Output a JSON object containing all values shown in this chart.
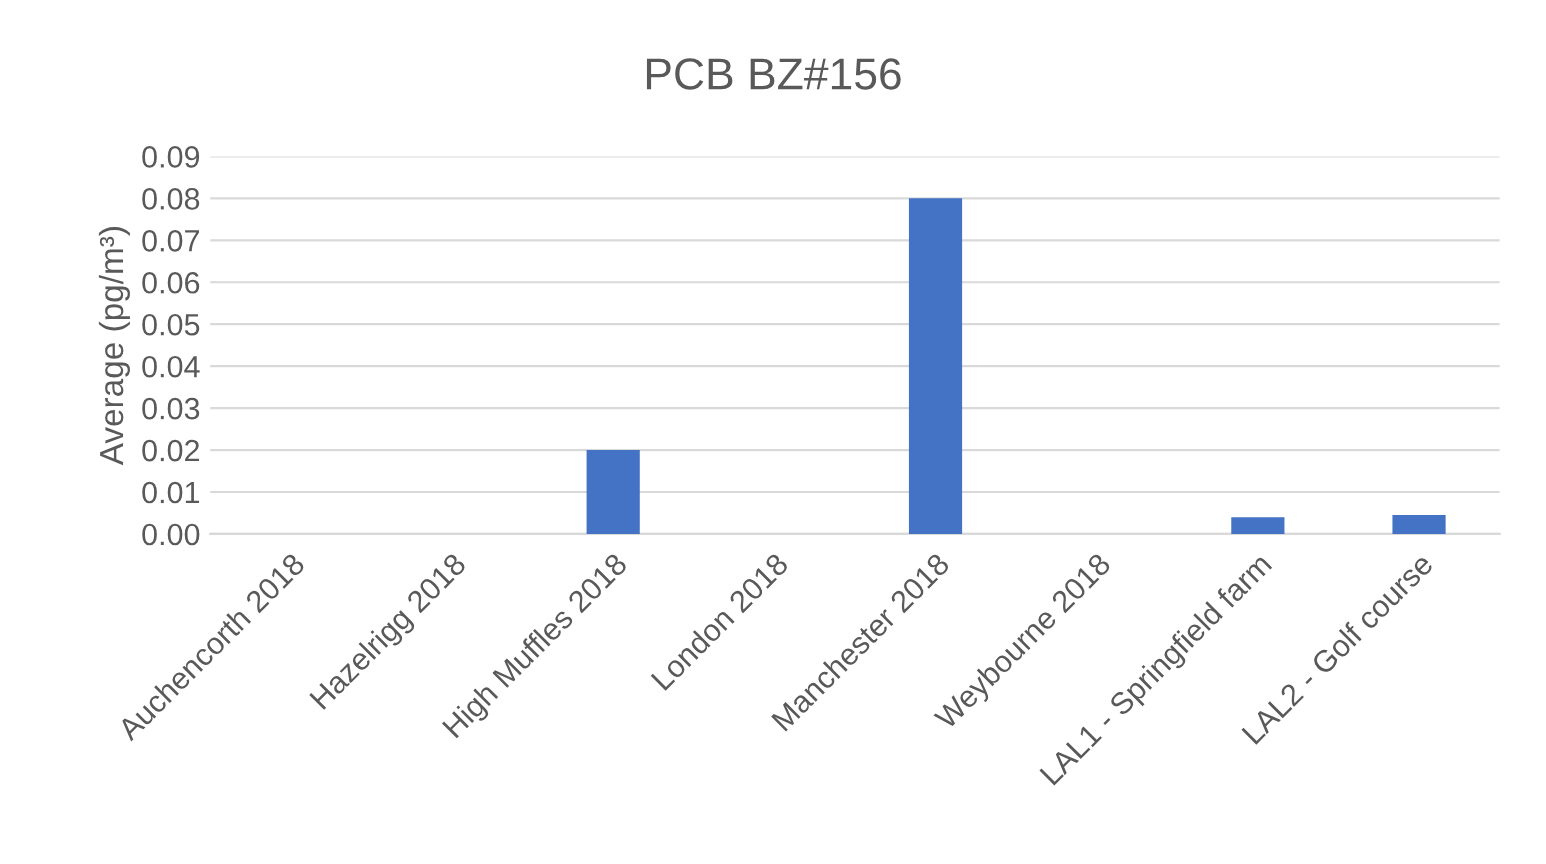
{
  "chart_data": {
    "type": "bar",
    "title": "PCB BZ#156",
    "ylabel": "Average (pg/m³)",
    "categories": [
      "Auchencorth 2018",
      "Hazelrigg 2018",
      "High Muffles 2018",
      "London 2018",
      "Manchester 2018",
      "Weybourne 2018",
      "LAL1 - Springfield farm",
      "LAL2 - Golf course"
    ],
    "values": [
      0,
      0,
      0.02,
      0,
      0.08,
      0,
      0.004,
      0.0045
    ],
    "color": "#4472c4",
    "ylim": [
      0,
      0.09
    ],
    "yticks": [
      {
        "value": 0,
        "label": "0.00"
      },
      0.01,
      0.02,
      0.03,
      0.04,
      0.05,
      0.06,
      0.07,
      0.08,
      0.09
    ],
    "grid": "y"
  }
}
